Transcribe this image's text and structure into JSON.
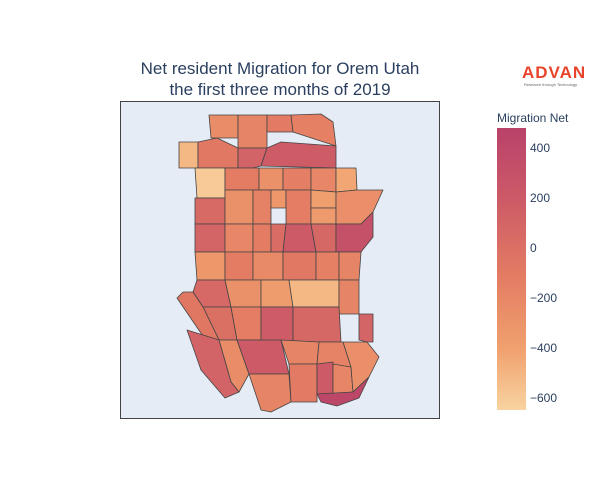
{
  "title": {
    "line1": "Net resident Migration for Orem Utah",
    "line2": "the first three months of 2019"
  },
  "logo": {
    "brand": "ADVAN",
    "tagline": "Research through Technology",
    "color": "#e8442b"
  },
  "colorbar": {
    "title": "Migration Net",
    "range": [
      -650,
      480
    ],
    "ticks": [
      {
        "value": 400,
        "label": "400"
      },
      {
        "value": 200,
        "label": "200"
      },
      {
        "value": 0,
        "label": "0"
      },
      {
        "value": -200,
        "label": "−200"
      },
      {
        "value": -400,
        "label": "−400"
      },
      {
        "value": -600,
        "label": "−600"
      }
    ],
    "colors": [
      "#f8d3a0",
      "#f0a06e",
      "#e37b63",
      "#cc5a67",
      "#b9426a"
    ]
  },
  "map": {
    "background": "#e5ecf6",
    "region_values": [
      -220,
      -150,
      -80,
      -120,
      -500,
      -60,
      120,
      180,
      -600,
      -90,
      -250,
      -110,
      -180,
      -400,
      60,
      -250,
      -130,
      -300,
      -100,
      -350,
      -320,
      -240,
      100,
      -180,
      -90,
      40,
      200,
      90,
      300,
      -300,
      -90,
      -200,
      -60,
      -120,
      -150,
      80,
      -250,
      -330,
      -500,
      -150,
      20,
      -100,
      180,
      90,
      -50,
      -220,
      200,
      -160,
      -140,
      120,
      -150,
      -80,
      200,
      -170,
      -240,
      420,
      100,
      -260
    ]
  }
}
